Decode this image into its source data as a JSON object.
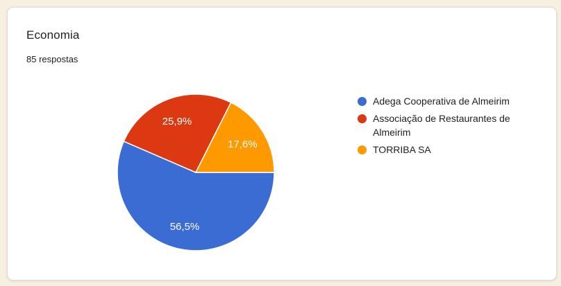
{
  "page": {
    "background_color": "#F7EFDF"
  },
  "card": {
    "title": "Economia",
    "response_count_label": "85 respostas",
    "background_color": "#FFFFFF",
    "border_color": "#DADCE0"
  },
  "chart_data": {
    "type": "pie",
    "title": "Economia",
    "subtitle": "85 respostas",
    "legend_position": "right",
    "start_angle_deg": 0,
    "direction": "clockwise",
    "slice_border_color": "#FFFFFF",
    "label_color": "#FFFFFF",
    "slices": [
      {
        "label": "Adega Cooperativa de Almeirim",
        "value_pct": 56.5,
        "display_label": "56,5%",
        "color": "#3B6CD4"
      },
      {
        "label": "Associação de Restaurantes de Almeirim",
        "value_pct": 25.9,
        "display_label": "25,9%",
        "color": "#DC3912"
      },
      {
        "label": "TORRIBA SA",
        "value_pct": 17.6,
        "display_label": "17,6%",
        "color": "#FF9900"
      }
    ]
  }
}
